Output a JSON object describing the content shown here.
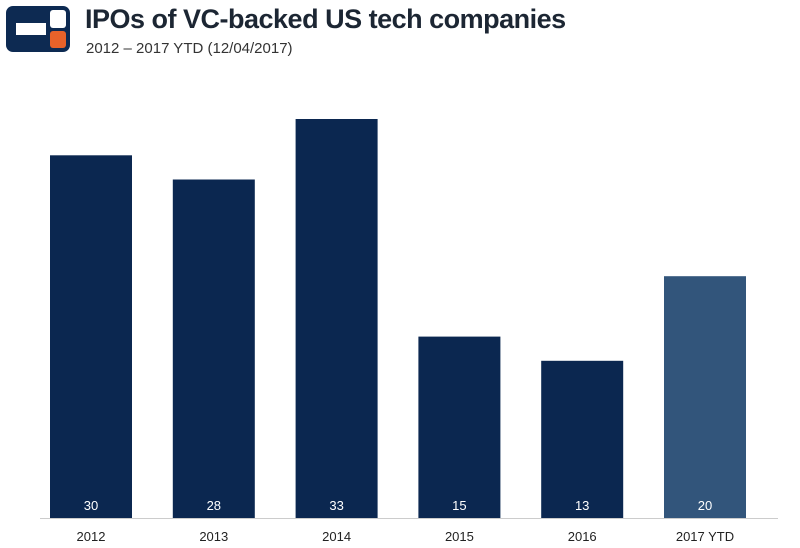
{
  "header": {
    "logo_icon": "cb-insights-logo-icon",
    "title": "IPOs of VC-backed US tech companies",
    "subtitle": "2012 – 2017 YTD (12/04/2017)"
  },
  "colors": {
    "logo_dark": "#0d2a52",
    "logo_accent": "#e8622a",
    "bar": "#0b2750",
    "bar_highlight": "#32557b",
    "axis": "#cccccc"
  },
  "chart_data": {
    "type": "bar",
    "title": "IPOs of VC-backed US tech companies",
    "subtitle": "2012 – 2017 YTD (12/04/2017)",
    "categories": [
      "2012",
      "2013",
      "2014",
      "2015",
      "2016",
      "2017 YTD"
    ],
    "values": [
      30,
      28,
      33,
      15,
      13,
      20
    ],
    "highlight_index": 5,
    "xlabel": "",
    "ylabel": "",
    "ylim": [
      0,
      33
    ],
    "grid": false,
    "legend": "none"
  }
}
